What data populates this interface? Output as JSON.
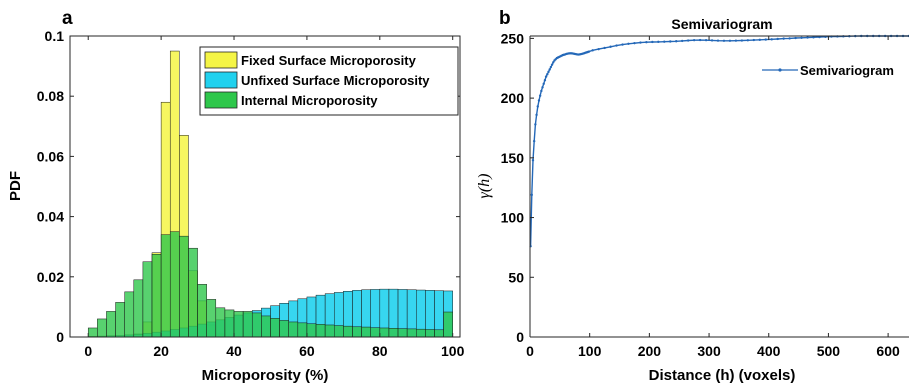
{
  "figure": {
    "panel_a_label": "a",
    "panel_b_label": "b"
  },
  "chart_data": [
    {
      "type": "bar",
      "title": "",
      "xlabel": "Microporosity (%)",
      "ylabel": "PDF",
      "xlim": [
        -5,
        102
      ],
      "ylim": [
        0,
        0.1
      ],
      "xticks": [
        0,
        20,
        40,
        60,
        80,
        100
      ],
      "yticks": [
        0,
        0.02,
        0.04,
        0.06,
        0.08,
        0.1
      ],
      "ytick_labels": [
        "0",
        "0.02",
        "0.04",
        "0.06",
        "0.08",
        "0.1"
      ],
      "bin_width": 2.5,
      "grid": false,
      "legend_position": "top-right",
      "bin_left": [
        0,
        2.5,
        5,
        7.5,
        10,
        12.5,
        15,
        17.5,
        20,
        22.5,
        25,
        27.5,
        30,
        32.5,
        35,
        37.5,
        40,
        42.5,
        45,
        47.5,
        50,
        52.5,
        55,
        57.5,
        60,
        62.5,
        65,
        67.5,
        70,
        72.5,
        75,
        77.5,
        80,
        82.5,
        85,
        87.5,
        90,
        92.5,
        95,
        97.5
      ],
      "series": [
        {
          "name": "Fixed Surface Microporosity",
          "color": "#f5f545",
          "values": [
            0,
            0,
            0,
            0,
            0.0005,
            0.001,
            0.005,
            0.028,
            0.078,
            0.095,
            0.067,
            0.022,
            0.012,
            0.004,
            0.001,
            0,
            0,
            0,
            0,
            0,
            0,
            0,
            0,
            0,
            0,
            0,
            0,
            0,
            0,
            0,
            0,
            0,
            0,
            0,
            0,
            0,
            0,
            0,
            0,
            0
          ]
        },
        {
          "name": "Unfixed Surface Microporosity",
          "color": "#21d1ee",
          "values": [
            0.0002,
            0.0003,
            0.0004,
            0.0005,
            0.0007,
            0.0009,
            0.0012,
            0.0016,
            0.002,
            0.0025,
            0.003,
            0.0036,
            0.0043,
            0.005,
            0.0057,
            0.0065,
            0.0073,
            0.008,
            0.0088,
            0.0096,
            0.0104,
            0.0112,
            0.012,
            0.0127,
            0.0133,
            0.0139,
            0.0144,
            0.0148,
            0.0152,
            0.0155,
            0.0157,
            0.0158,
            0.0159,
            0.0159,
            0.0158,
            0.0157,
            0.0156,
            0.0155,
            0.0154,
            0.0153
          ]
        },
        {
          "name": "Internal Microporosity",
          "color": "#2ec74b",
          "values": [
            0.003,
            0.006,
            0.0085,
            0.0115,
            0.015,
            0.019,
            0.025,
            0.0275,
            0.034,
            0.035,
            0.0335,
            0.0295,
            0.0175,
            0.0125,
            0.0097,
            0.009,
            0.0085,
            0.0085,
            0.008,
            0.007,
            0.0062,
            0.0055,
            0.005,
            0.0047,
            0.0044,
            0.0042,
            0.004,
            0.0038,
            0.0036,
            0.0034,
            0.0033,
            0.0031,
            0.003,
            0.0029,
            0.0028,
            0.0027,
            0.0026,
            0.0025,
            0.0024,
            0.0083
          ]
        }
      ]
    },
    {
      "type": "line",
      "title": "Semivariogram",
      "xlabel": "Distance (h) (voxels)",
      "ylabel": "γ(h)",
      "xlim": [
        0,
        635
      ],
      "ylim": [
        0,
        252
      ],
      "xticks": [
        0,
        100,
        200,
        300,
        400,
        500,
        600
      ],
      "yticks": [
        0,
        50,
        100,
        150,
        200,
        250
      ],
      "grid": false,
      "legend_position": "top-right",
      "series": [
        {
          "name": "Semivariogram",
          "color": "#2468b8",
          "x": [
            1,
            3,
            5,
            7,
            9,
            11,
            13,
            15,
            17,
            19,
            21,
            23,
            25,
            27,
            29,
            31,
            33,
            35,
            37,
            39,
            41,
            43,
            45,
            47,
            49,
            51,
            53,
            55,
            57,
            59,
            61,
            63,
            65,
            67,
            69,
            71,
            73,
            75,
            77,
            79,
            81,
            83,
            85,
            87,
            89,
            91,
            93,
            95,
            97,
            99,
            105,
            115,
            125,
            135,
            145,
            155,
            165,
            175,
            185,
            195,
            205,
            215,
            225,
            235,
            245,
            255,
            265,
            275,
            285,
            295,
            305,
            315,
            325,
            335,
            345,
            355,
            365,
            375,
            385,
            395,
            405,
            415,
            425,
            435,
            445,
            455,
            465,
            475,
            485,
            495,
            505,
            515,
            525,
            535,
            545,
            555,
            565,
            575,
            585,
            595,
            605,
            615,
            625,
            635
          ],
          "y": [
            76,
            119,
            148,
            164,
            178,
            186,
            193,
            198,
            202,
            206,
            209,
            212,
            215,
            218,
            220,
            222,
            224,
            226,
            228,
            230,
            231.5,
            232.5,
            233.5,
            234,
            234.5,
            235,
            235.5,
            236,
            236.3,
            236.6,
            237,
            237.2,
            237.4,
            237.5,
            237.5,
            237.4,
            237.2,
            237,
            236.8,
            236.6,
            236.5,
            236.6,
            236.8,
            237,
            237.3,
            237.6,
            238,
            238.3,
            238.6,
            239,
            240,
            241,
            242,
            243,
            244,
            244.8,
            245.5,
            246,
            246.5,
            246.8,
            247,
            247.1,
            247.2,
            247.4,
            247.6,
            247.9,
            248.2,
            248.5,
            248.6,
            248.5,
            248.3,
            248.1,
            248,
            248,
            248.1,
            248.2,
            248.4,
            248.6,
            248.8,
            249,
            249.2,
            249.5,
            249.8,
            250,
            250.3,
            250.5,
            250.7,
            250.9,
            251.1,
            251.3,
            251.5,
            251.6,
            251.7,
            251.8,
            251.9,
            252,
            252,
            252,
            252,
            252,
            252,
            252,
            252,
            252
          ]
        }
      ]
    }
  ]
}
